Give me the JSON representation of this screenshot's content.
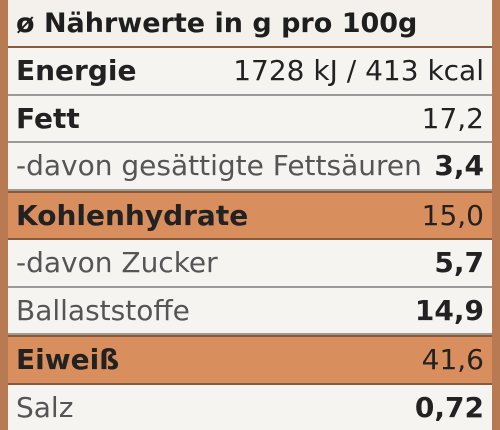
{
  "header": {
    "title": "ø Nährwerte in g pro 100g"
  },
  "table": {
    "rows": [
      [
        "Energie",
        "1728 kJ / 413 kcal"
      ],
      [
        "Fett",
        "17,2"
      ],
      [
        "-davon gesättigte Fettsäuren",
        "3,4"
      ],
      [
        "Kohlenhydrate",
        "15,0"
      ],
      [
        "-davon Zucker",
        "5,7"
      ],
      [
        "Ballaststoffe",
        "14,9"
      ],
      [
        "Eiweiß",
        "41,6"
      ],
      [
        "Salz",
        "0,72"
      ]
    ]
  }
}
